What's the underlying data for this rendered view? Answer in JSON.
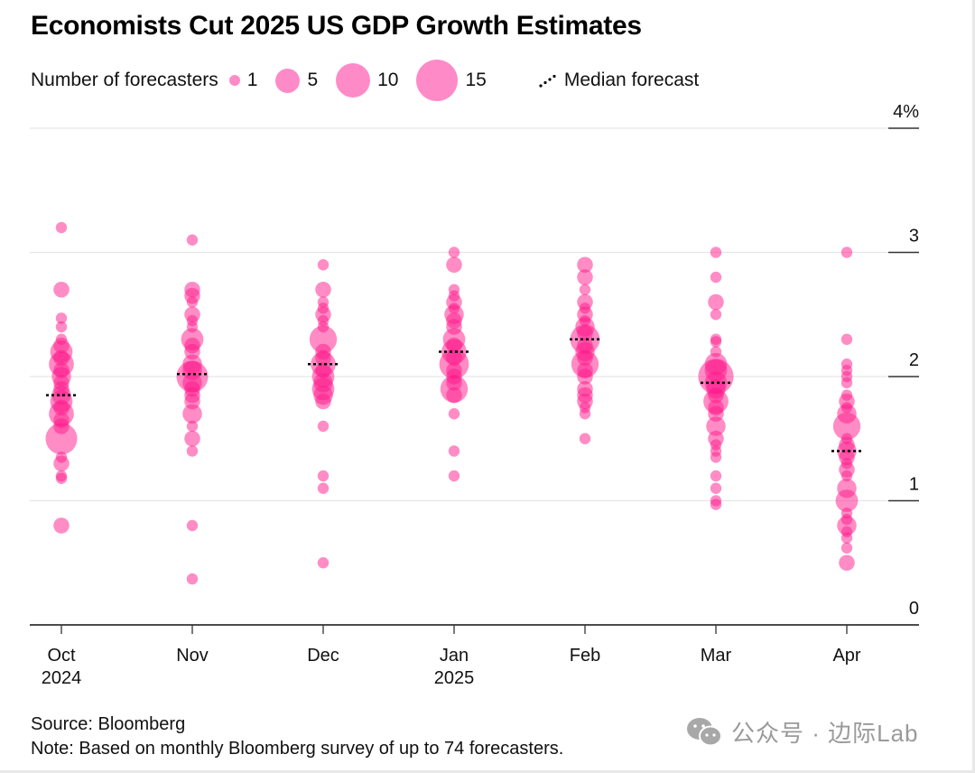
{
  "chart_data": {
    "type": "scatter",
    "subtype": "bubble-strip",
    "title": "Economists Cut 2025 US GDP Growth Estimates",
    "xlabel": "",
    "ylabel": "",
    "y_unit": "%",
    "ylim": [
      0,
      4
    ],
    "y_ticks": [
      {
        "value": 4,
        "label": "4%"
      },
      {
        "value": 3,
        "label": "3"
      },
      {
        "value": 2,
        "label": "2"
      },
      {
        "value": 1,
        "label": "1"
      },
      {
        "value": 0,
        "label": "0"
      }
    ],
    "y_axis_side": "right",
    "grid": true,
    "legend": {
      "placement": "top-left",
      "title": "Number of forecasters",
      "sizes": [
        1,
        5,
        10,
        15
      ],
      "median_label": "Median forecast"
    },
    "colors": {
      "bubble": "#ff1a8c",
      "legend_bubble": "#ff8ac8",
      "median": "#000000",
      "grid": "#e6e6e6",
      "axis": "#333333"
    },
    "categories": [
      {
        "label": "Oct",
        "sublabel": "2024"
      },
      {
        "label": "Nov",
        "sublabel": ""
      },
      {
        "label": "Dec",
        "sublabel": ""
      },
      {
        "label": "Jan",
        "sublabel": "2025"
      },
      {
        "label": "Feb",
        "sublabel": ""
      },
      {
        "label": "Mar",
        "sublabel": ""
      },
      {
        "label": "Apr",
        "sublabel": ""
      }
    ],
    "series": [
      {
        "name": "Oct 2024",
        "median": 1.85,
        "points": [
          [
            3.2,
            1
          ],
          [
            2.7,
            2
          ],
          [
            2.47,
            1
          ],
          [
            2.4,
            1
          ],
          [
            2.3,
            1
          ],
          [
            2.25,
            2
          ],
          [
            2.2,
            4
          ],
          [
            2.15,
            2
          ],
          [
            2.1,
            5
          ],
          [
            2.05,
            2
          ],
          [
            2.0,
            3
          ],
          [
            1.95,
            2
          ],
          [
            1.9,
            2
          ],
          [
            1.85,
            3
          ],
          [
            1.8,
            4
          ],
          [
            1.75,
            2
          ],
          [
            1.7,
            5
          ],
          [
            1.65,
            2
          ],
          [
            1.6,
            2
          ],
          [
            1.5,
            8
          ],
          [
            1.35,
            1
          ],
          [
            1.3,
            2
          ],
          [
            1.2,
            1
          ],
          [
            1.18,
            1
          ],
          [
            0.8,
            2
          ]
        ]
      },
      {
        "name": "Nov",
        "median": 2.02,
        "points": [
          [
            3.1,
            1
          ],
          [
            2.7,
            2
          ],
          [
            2.65,
            2
          ],
          [
            2.6,
            1
          ],
          [
            2.5,
            2
          ],
          [
            2.45,
            1
          ],
          [
            2.4,
            1
          ],
          [
            2.3,
            4
          ],
          [
            2.25,
            2
          ],
          [
            2.2,
            2
          ],
          [
            2.1,
            3
          ],
          [
            2.05,
            3
          ],
          [
            2.0,
            8
          ],
          [
            1.95,
            3
          ],
          [
            1.9,
            2
          ],
          [
            1.85,
            2
          ],
          [
            1.8,
            2
          ],
          [
            1.7,
            3
          ],
          [
            1.6,
            1
          ],
          [
            1.5,
            2
          ],
          [
            1.4,
            1
          ],
          [
            0.8,
            1
          ],
          [
            0.37,
            1
          ]
        ]
      },
      {
        "name": "Dec",
        "median": 2.1,
        "points": [
          [
            2.9,
            1
          ],
          [
            2.7,
            2
          ],
          [
            2.6,
            1
          ],
          [
            2.55,
            1
          ],
          [
            2.5,
            2
          ],
          [
            2.45,
            1
          ],
          [
            2.4,
            1
          ],
          [
            2.3,
            6
          ],
          [
            2.2,
            2
          ],
          [
            2.15,
            2
          ],
          [
            2.1,
            5
          ],
          [
            2.05,
            2
          ],
          [
            2.0,
            4
          ],
          [
            1.95,
            3
          ],
          [
            1.9,
            4
          ],
          [
            1.85,
            3
          ],
          [
            1.8,
            2
          ],
          [
            1.6,
            1
          ],
          [
            1.2,
            1
          ],
          [
            1.1,
            1
          ],
          [
            0.5,
            1
          ]
        ]
      },
      {
        "name": "Jan 2025",
        "median": 2.2,
        "points": [
          [
            3.0,
            1
          ],
          [
            2.9,
            2
          ],
          [
            2.7,
            1
          ],
          [
            2.65,
            1
          ],
          [
            2.6,
            2
          ],
          [
            2.55,
            1
          ],
          [
            2.5,
            3
          ],
          [
            2.45,
            2
          ],
          [
            2.4,
            2
          ],
          [
            2.3,
            4
          ],
          [
            2.25,
            2
          ],
          [
            2.2,
            5
          ],
          [
            2.15,
            2
          ],
          [
            2.1,
            7
          ],
          [
            2.05,
            2
          ],
          [
            2.0,
            2
          ],
          [
            1.95,
            2
          ],
          [
            1.9,
            6
          ],
          [
            1.85,
            2
          ],
          [
            1.7,
            1
          ],
          [
            1.4,
            1
          ],
          [
            1.2,
            1
          ]
        ]
      },
      {
        "name": "Feb",
        "median": 2.3,
        "points": [
          [
            2.9,
            2
          ],
          [
            2.8,
            2
          ],
          [
            2.7,
            1
          ],
          [
            2.6,
            2
          ],
          [
            2.55,
            1
          ],
          [
            2.5,
            2
          ],
          [
            2.45,
            1
          ],
          [
            2.4,
            3
          ],
          [
            2.35,
            2
          ],
          [
            2.3,
            7
          ],
          [
            2.25,
            2
          ],
          [
            2.2,
            3
          ],
          [
            2.15,
            2
          ],
          [
            2.1,
            6
          ],
          [
            2.05,
            2
          ],
          [
            2.0,
            2
          ],
          [
            1.9,
            2
          ],
          [
            1.85,
            2
          ],
          [
            1.8,
            2
          ],
          [
            1.75,
            1
          ],
          [
            1.7,
            1
          ],
          [
            1.5,
            1
          ]
        ]
      },
      {
        "name": "Mar",
        "median": 1.95,
        "points": [
          [
            3.0,
            1
          ],
          [
            2.8,
            1
          ],
          [
            2.6,
            2
          ],
          [
            2.5,
            1
          ],
          [
            2.3,
            1
          ],
          [
            2.28,
            1
          ],
          [
            2.2,
            1
          ],
          [
            2.1,
            4
          ],
          [
            2.05,
            4
          ],
          [
            2.0,
            10
          ],
          [
            1.95,
            4
          ],
          [
            1.9,
            3
          ],
          [
            1.85,
            2
          ],
          [
            1.8,
            5
          ],
          [
            1.75,
            2
          ],
          [
            1.7,
            2
          ],
          [
            1.6,
            3
          ],
          [
            1.5,
            2
          ],
          [
            1.45,
            1
          ],
          [
            1.4,
            1
          ],
          [
            1.35,
            1
          ],
          [
            1.2,
            1
          ],
          [
            1.1,
            1
          ],
          [
            1.0,
            1
          ],
          [
            0.97,
            1
          ]
        ]
      },
      {
        "name": "Apr",
        "median": 1.4,
        "points": [
          [
            3.0,
            1
          ],
          [
            2.3,
            1
          ],
          [
            2.1,
            1
          ],
          [
            2.05,
            1
          ],
          [
            2.0,
            1
          ],
          [
            1.95,
            1
          ],
          [
            1.85,
            1
          ],
          [
            1.8,
            2
          ],
          [
            1.75,
            1
          ],
          [
            1.7,
            3
          ],
          [
            1.6,
            6
          ],
          [
            1.5,
            1
          ],
          [
            1.45,
            2
          ],
          [
            1.4,
            3
          ],
          [
            1.35,
            2
          ],
          [
            1.3,
            1
          ],
          [
            1.25,
            2
          ],
          [
            1.2,
            1
          ],
          [
            1.1,
            3
          ],
          [
            1.0,
            4
          ],
          [
            0.9,
            1
          ],
          [
            0.85,
            1
          ],
          [
            0.8,
            3
          ],
          [
            0.75,
            1
          ],
          [
            0.7,
            1
          ],
          [
            0.62,
            1
          ],
          [
            0.5,
            2
          ]
        ]
      }
    ],
    "source": "Source: Bloomberg",
    "note": "Note: Based on monthly Bloomberg survey of up to 74 forecasters."
  },
  "watermark": {
    "icon": "wechat-icon",
    "text": "公众号 · 边际Lab"
  }
}
